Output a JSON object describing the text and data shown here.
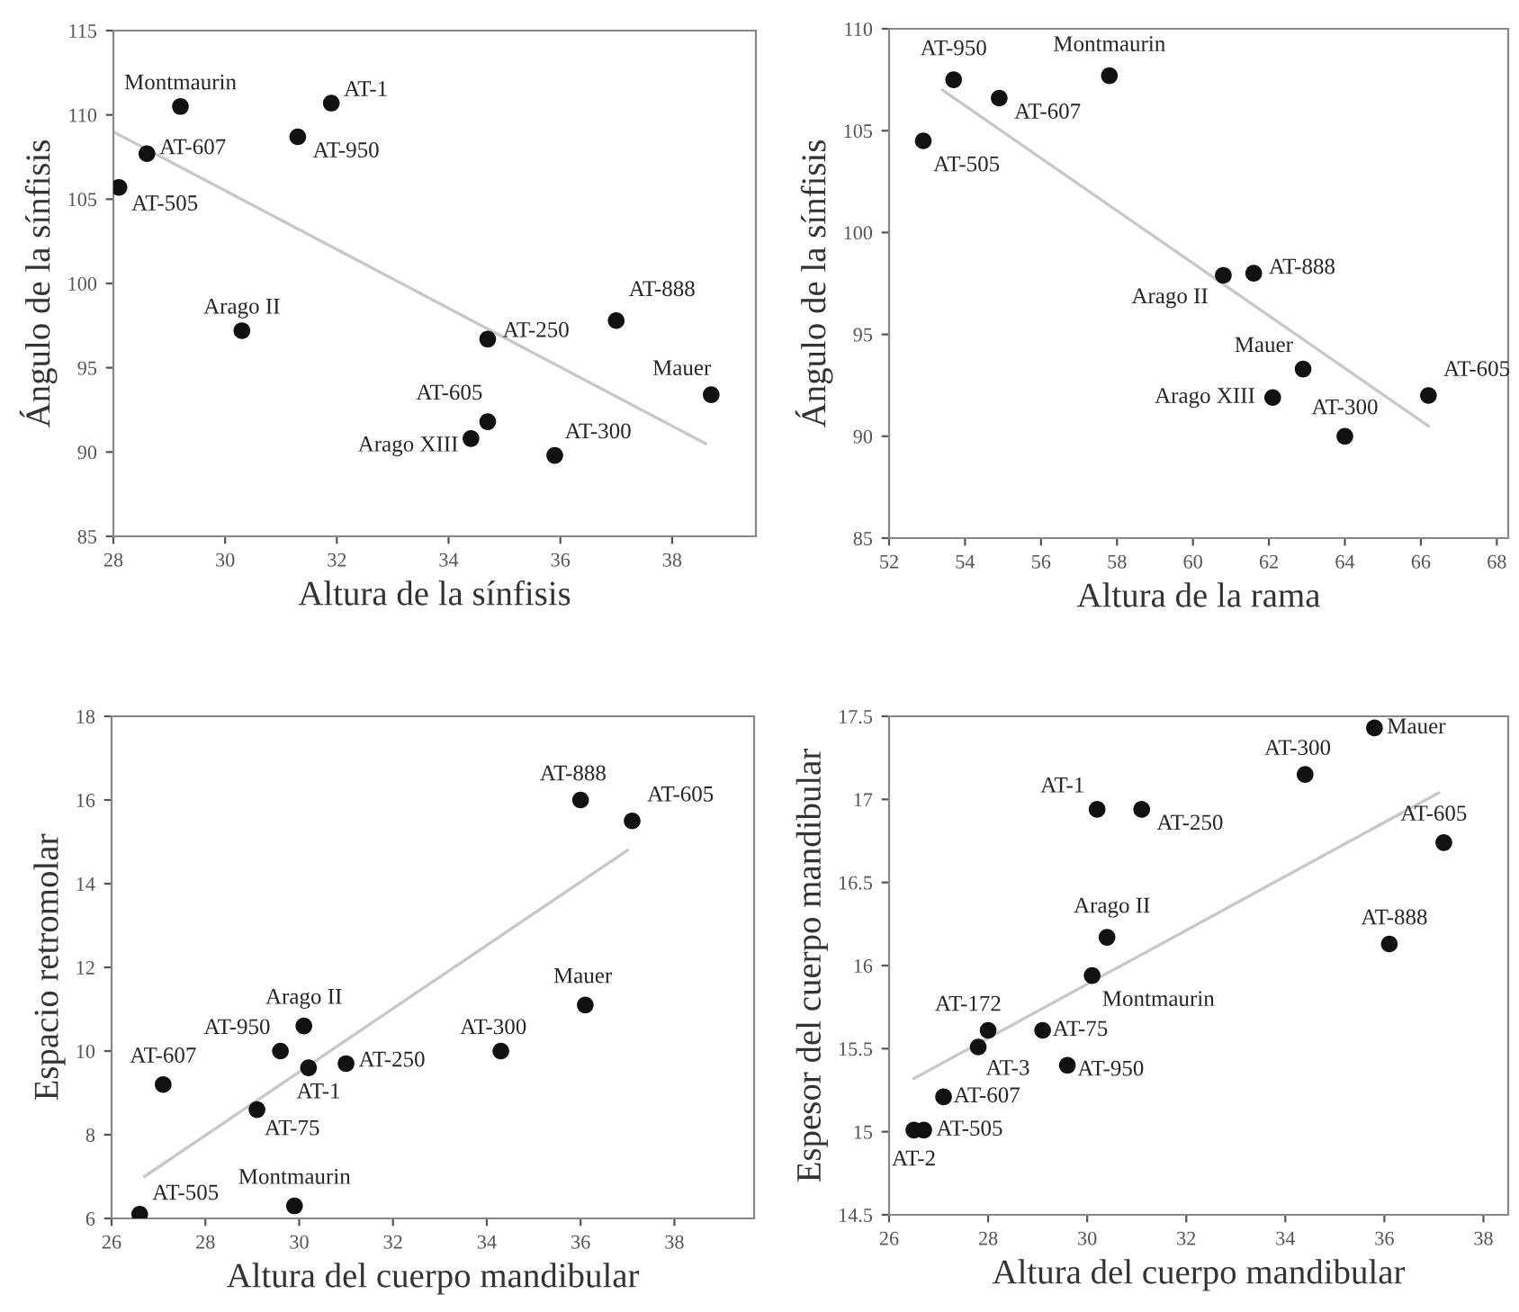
{
  "chart_data": [
    {
      "type": "scatter",
      "xlabel": "Altura de la sínfisis",
      "ylabel": "Ángulo de la sínfisis",
      "xlim": [
        28,
        39.5
      ],
      "ylim": [
        85,
        115
      ],
      "xticks": [
        28,
        30,
        32,
        34,
        36,
        38
      ],
      "yticks": [
        85,
        90,
        95,
        100,
        105,
        110,
        115
      ],
      "grid": false,
      "series": [
        {
          "marker": "circle",
          "color": "#111111",
          "x": [
            29.2,
            31.9,
            31.3,
            28.6,
            28.1,
            30.3,
            34.7,
            37.0,
            38.7,
            34.7,
            34.4,
            35.9
          ],
          "values": [
            110.5,
            110.7,
            108.7,
            107.7,
            105.7,
            97.2,
            96.7,
            97.8,
            93.4,
            91.8,
            90.8,
            89.8
          ]
        },
        {
          "type": "line",
          "color": "#c8c8c8",
          "x": [
            28.0,
            38.6
          ],
          "values": [
            109.0,
            90.5
          ]
        }
      ],
      "annotations": [
        {
          "text": "Montmaurin",
          "x": 29.2,
          "y": 110.5
        },
        {
          "text": "AT-1",
          "x": 31.9,
          "y": 110.7
        },
        {
          "text": "AT-950",
          "x": 31.3,
          "y": 108.7
        },
        {
          "text": "AT-607",
          "x": 28.6,
          "y": 107.7
        },
        {
          "text": "AT-505",
          "x": 28.1,
          "y": 105.7
        },
        {
          "text": "Arago II",
          "x": 30.3,
          "y": 97.2
        },
        {
          "text": "AT-250",
          "x": 34.7,
          "y": 96.7
        },
        {
          "text": "AT-888",
          "x": 37.0,
          "y": 97.8
        },
        {
          "text": "Mauer",
          "x": 38.7,
          "y": 93.4
        },
        {
          "text": "AT-605",
          "x": 34.7,
          "y": 91.8
        },
        {
          "text": "Arago XIII",
          "x": 34.4,
          "y": 90.8
        },
        {
          "text": "AT-300",
          "x": 35.9,
          "y": 89.8
        }
      ]
    },
    {
      "type": "scatter",
      "xlabel": "Altura de la rama",
      "ylabel": "Ángulo de la sínfisis",
      "xlim": [
        52,
        68.3
      ],
      "ylim": [
        85,
        110
      ],
      "xticks": [
        52,
        54,
        56,
        58,
        60,
        62,
        64,
        66,
        68
      ],
      "yticks": [
        85,
        90,
        95,
        100,
        105,
        110
      ],
      "grid": false,
      "series": [
        {
          "marker": "circle",
          "color": "#111111",
          "x": [
            53.7,
            57.8,
            54.9,
            52.9,
            60.8,
            61.6,
            62.9,
            62.1,
            64.0,
            66.2
          ],
          "values": [
            107.5,
            107.7,
            106.6,
            104.5,
            97.9,
            98.0,
            93.3,
            91.9,
            90.0,
            92.0
          ]
        },
        {
          "type": "line",
          "color": "#c8c8c8",
          "x": [
            53.4,
            66.2
          ],
          "values": [
            107.0,
            90.5
          ]
        }
      ],
      "annotations": [
        {
          "text": "AT-950",
          "x": 53.7,
          "y": 107.5
        },
        {
          "text": "Montmaurin",
          "x": 57.8,
          "y": 107.7
        },
        {
          "text": "AT-607",
          "x": 54.9,
          "y": 106.6
        },
        {
          "text": "AT-505",
          "x": 52.9,
          "y": 104.5
        },
        {
          "text": "Arago II",
          "x": 60.8,
          "y": 97.9
        },
        {
          "text": "AT-888",
          "x": 61.6,
          "y": 98.0
        },
        {
          "text": "Mauer",
          "x": 62.9,
          "y": 93.3
        },
        {
          "text": "Arago XIII",
          "x": 62.1,
          "y": 91.9
        },
        {
          "text": "AT-300",
          "x": 64.0,
          "y": 90.0
        },
        {
          "text": "AT-605",
          "x": 66.2,
          "y": 92.0
        }
      ]
    },
    {
      "type": "scatter",
      "xlabel": "Altura del cuerpo mandibular",
      "ylabel": "Espacio retromolar",
      "xlim": [
        26,
        39.7
      ],
      "ylim": [
        6,
        18
      ],
      "xticks": [
        26,
        28,
        30,
        32,
        34,
        36,
        38
      ],
      "yticks": [
        6,
        8,
        10,
        12,
        14,
        16,
        18
      ],
      "grid": false,
      "series": [
        {
          "marker": "circle",
          "color": "#111111",
          "x": [
            36.0,
            37.1,
            36.1,
            34.3,
            30.1,
            29.6,
            30.2,
            31.0,
            27.1,
            29.1,
            26.6,
            29.9
          ],
          "values": [
            16.0,
            15.5,
            11.1,
            10.0,
            10.6,
            10.0,
            9.6,
            9.7,
            9.2,
            8.6,
            6.1,
            6.3
          ]
        },
        {
          "type": "line",
          "color": "#c8c8c8",
          "x": [
            26.7,
            37.0
          ],
          "values": [
            7.0,
            14.8
          ]
        }
      ],
      "annotations": [
        {
          "text": "AT-888",
          "x": 36.0,
          "y": 16.0
        },
        {
          "text": "AT-605",
          "x": 37.1,
          "y": 15.5
        },
        {
          "text": "Mauer",
          "x": 36.1,
          "y": 11.1
        },
        {
          "text": "AT-300",
          "x": 34.3,
          "y": 10.0
        },
        {
          "text": "Arago II",
          "x": 30.1,
          "y": 10.6
        },
        {
          "text": "AT-950",
          "x": 29.6,
          "y": 10.0
        },
        {
          "text": "AT-1",
          "x": 30.2,
          "y": 9.6
        },
        {
          "text": "AT-250",
          "x": 31.0,
          "y": 9.7
        },
        {
          "text": "AT-607",
          "x": 27.1,
          "y": 9.2
        },
        {
          "text": "AT-75",
          "x": 29.1,
          "y": 8.6
        },
        {
          "text": "AT-505",
          "x": 26.6,
          "y": 6.1
        },
        {
          "text": "Montmaurin",
          "x": 29.9,
          "y": 6.3
        }
      ]
    },
    {
      "type": "scatter",
      "xlabel": "Altura del cuerpo mandibular",
      "ylabel": "Espesor del cuerpo mandibular",
      "xlim": [
        26,
        38.5
      ],
      "ylim": [
        14.5,
        17.5
      ],
      "xticks": [
        26,
        28,
        30,
        32,
        34,
        36,
        38
      ],
      "yticks": [
        14.5,
        15,
        15.5,
        16,
        16.5,
        17,
        17.5
      ],
      "grid": false,
      "series": [
        {
          "marker": "circle",
          "color": "#111111",
          "x": [
            35.8,
            34.4,
            30.2,
            31.1,
            37.2,
            30.4,
            36.1,
            30.1,
            28.0,
            27.8,
            29.1,
            29.6,
            27.1,
            26.7,
            26.5
          ],
          "values": [
            17.43,
            17.15,
            16.94,
            16.94,
            16.74,
            16.17,
            16.13,
            15.94,
            15.61,
            15.51,
            15.61,
            15.4,
            15.21,
            15.01,
            15.01
          ]
        },
        {
          "type": "line",
          "color": "#c8c8c8",
          "x": [
            26.5,
            37.1
          ],
          "values": [
            15.32,
            17.04
          ]
        }
      ],
      "annotations": [
        {
          "text": "Mauer",
          "x": 35.8,
          "y": 17.43
        },
        {
          "text": "AT-300",
          "x": 34.4,
          "y": 17.15
        },
        {
          "text": "AT-1",
          "x": 30.2,
          "y": 16.94
        },
        {
          "text": "AT-250",
          "x": 31.1,
          "y": 16.94
        },
        {
          "text": "AT-605",
          "x": 37.2,
          "y": 16.74
        },
        {
          "text": "Arago II",
          "x": 30.4,
          "y": 16.17
        },
        {
          "text": "AT-888",
          "x": 36.1,
          "y": 16.13
        },
        {
          "text": "Montmaurin",
          "x": 30.1,
          "y": 15.94
        },
        {
          "text": "AT-172",
          "x": 28.0,
          "y": 15.61
        },
        {
          "text": "AT-3",
          "x": 27.8,
          "y": 15.51
        },
        {
          "text": "AT-75",
          "x": 29.1,
          "y": 15.61
        },
        {
          "text": "AT-950",
          "x": 29.6,
          "y": 15.4
        },
        {
          "text": "AT-607",
          "x": 27.1,
          "y": 15.21
        },
        {
          "text": "AT-505",
          "x": 26.7,
          "y": 15.01
        },
        {
          "text": "AT-2",
          "x": 26.5,
          "y": 15.01
        }
      ]
    }
  ]
}
